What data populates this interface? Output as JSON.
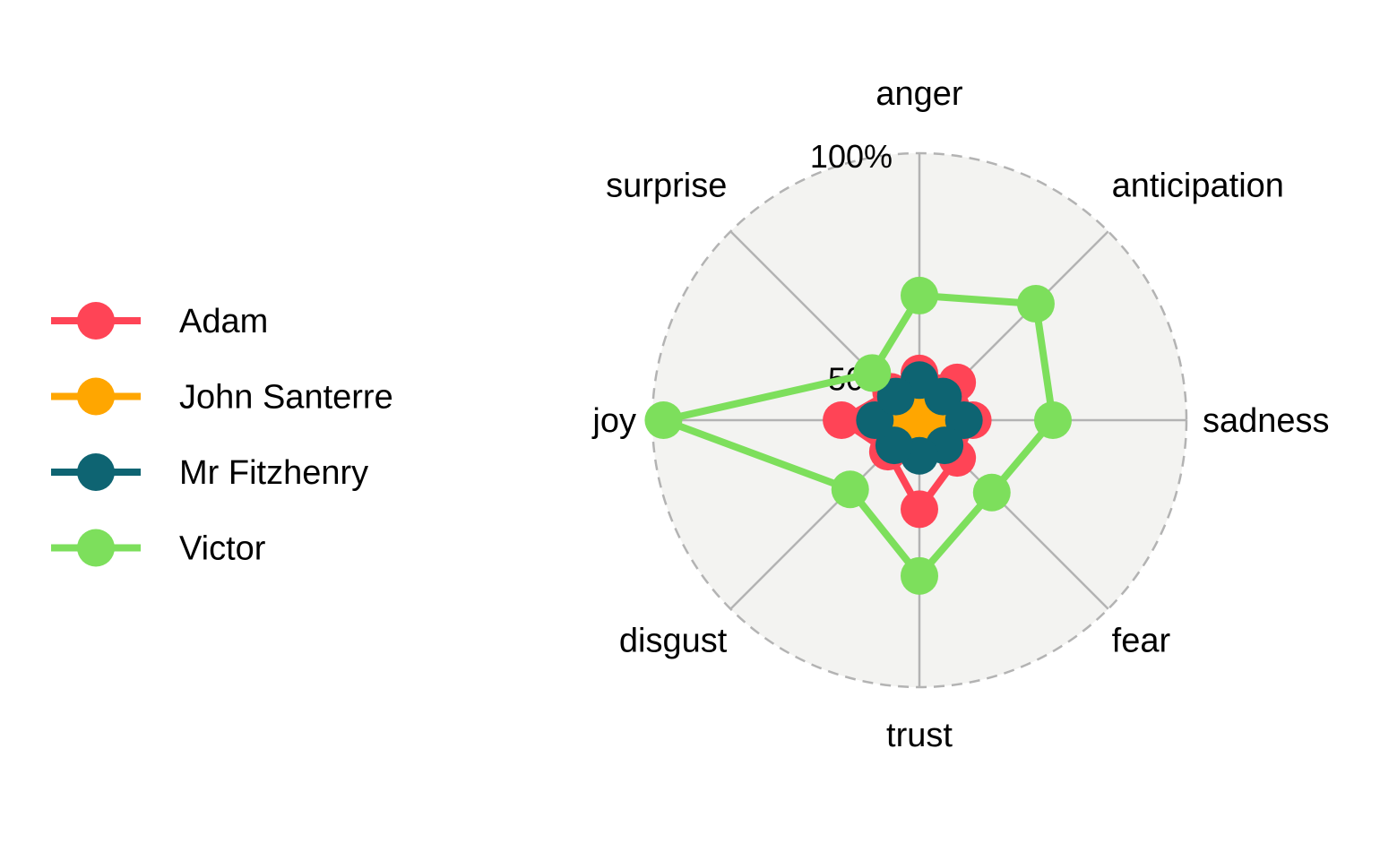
{
  "chart_data": {
    "type": "radar",
    "axes": [
      "anger",
      "anticipation",
      "sadness",
      "fear",
      "trust",
      "disgust",
      "joy",
      "surprise"
    ],
    "radial_ticks": [
      {
        "value": 50,
        "label": "50%"
      },
      {
        "value": 100,
        "label": "100%"
      }
    ],
    "rlim": [
      40,
      100
    ],
    "grid": true,
    "legend_position": "left",
    "background": "#f3f3f1",
    "series": [
      {
        "name": "Adam",
        "color": "#ff4456",
        "values": [
          50.5,
          52,
          52,
          52,
          60,
          50,
          57.5,
          49
        ]
      },
      {
        "name": "John Santerre",
        "color": "#ffa600",
        "values": [
          46,
          44,
          44,
          45,
          44,
          44,
          44,
          44.5
        ]
      },
      {
        "name": "Mr Fitzhenry",
        "color": "#0e6472",
        "values": [
          49,
          47.5,
          50,
          48,
          48,
          48,
          50,
          47.5
        ]
      },
      {
        "name": "Victor",
        "color": "#7ddf5c",
        "values": [
          68,
          77,
          70,
          63,
          75,
          62,
          97.5,
          55
        ]
      }
    ]
  }
}
